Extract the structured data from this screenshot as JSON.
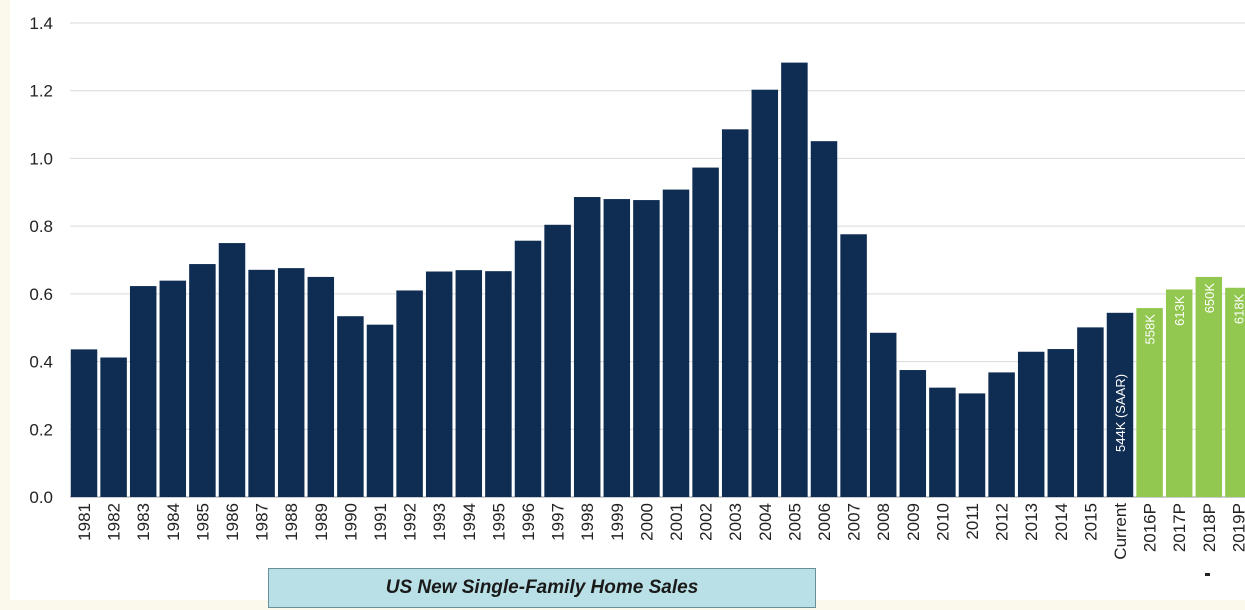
{
  "chart_data": {
    "type": "bar",
    "title": "US New Single-Family Home Sales",
    "xlabel": "",
    "ylabel": "",
    "ylim": [
      0,
      1.4
    ],
    "yticks": [
      "0.0",
      "0.2",
      "0.4",
      "0.6",
      "0.8",
      "1.0",
      "1.2",
      "1.4"
    ],
    "grid": true,
    "categories": [
      "1981",
      "1982",
      "1983",
      "1984",
      "1985",
      "1986",
      "1987",
      "1988",
      "1989",
      "1990",
      "1991",
      "1992",
      "1993",
      "1994",
      "1995",
      "1996",
      "1997",
      "1998",
      "1999",
      "2000",
      "2001",
      "2002",
      "2003",
      "2004",
      "2005",
      "2006",
      "2007",
      "2008",
      "2009",
      "2010",
      "2011",
      "2012",
      "2013",
      "2014",
      "2015",
      "Current",
      "2016P",
      "2017P",
      "2018P",
      "2019P"
    ],
    "values": [
      0.436,
      0.412,
      0.623,
      0.639,
      0.688,
      0.75,
      0.671,
      0.676,
      0.65,
      0.534,
      0.509,
      0.61,
      0.666,
      0.67,
      0.667,
      0.757,
      0.804,
      0.886,
      0.88,
      0.877,
      0.908,
      0.973,
      1.086,
      1.203,
      1.283,
      1.051,
      0.776,
      0.485,
      0.375,
      0.323,
      0.306,
      0.368,
      0.429,
      0.437,
      0.501,
      0.544,
      0.558,
      0.613,
      0.65,
      0.618
    ],
    "bar_labels": {
      "35": "544K (SAAR)",
      "36": "558K",
      "37": "613K",
      "38": "650K",
      "39": "618K"
    },
    "colors": {
      "historical": "#0f2c52",
      "projected": "#92c84f",
      "grid": "#d9d9d9"
    },
    "projected_from_index": 36
  }
}
